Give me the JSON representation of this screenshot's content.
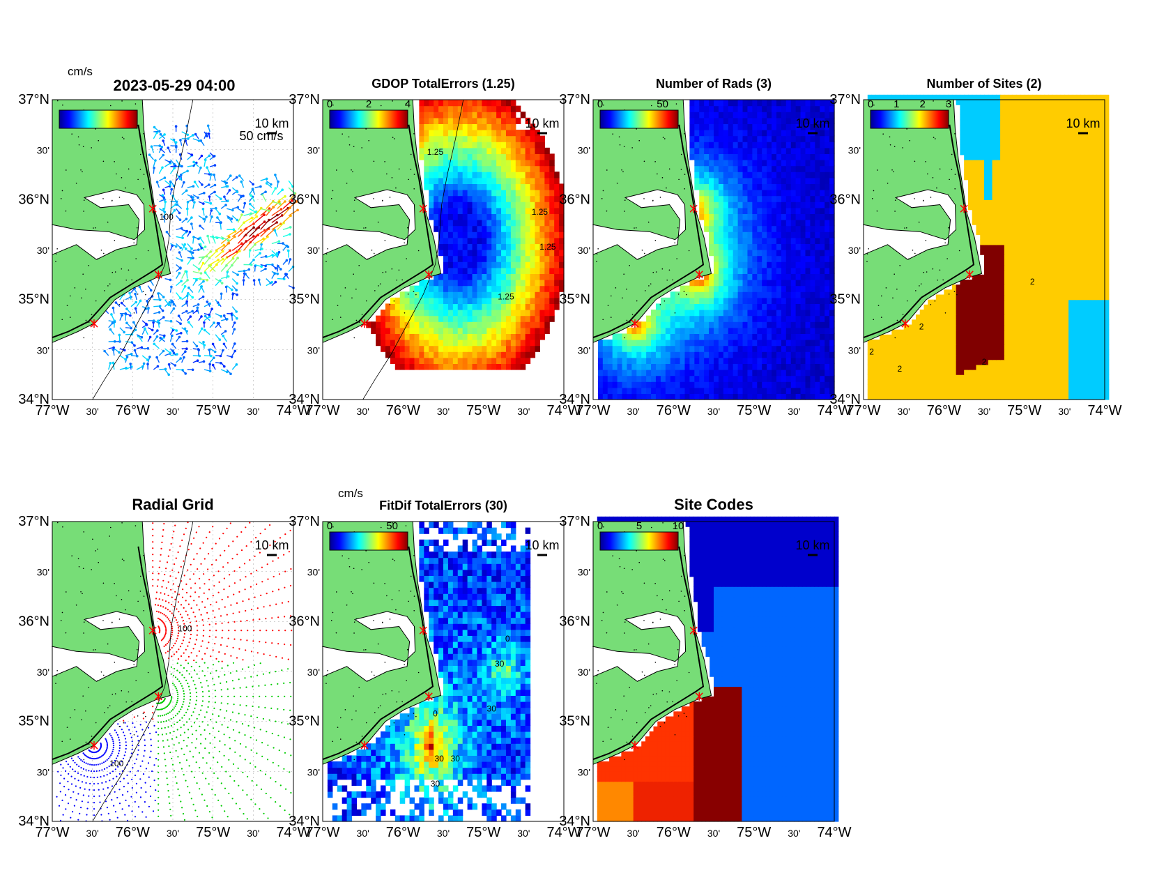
{
  "figure": {
    "timestamp": "2023-05-29 04:00",
    "scale_label": "10 km",
    "lat_labels": [
      "34°N",
      "30'",
      "35°N",
      "30'",
      "36°N",
      "30'",
      "37°N"
    ],
    "lon_labels": [
      "77°W",
      "30'",
      "76°W",
      "30'",
      "75°W",
      "30'",
      "74°W"
    ],
    "axis_ranges": {
      "lon": [
        -77,
        -74
      ],
      "lat": [
        34,
        37
      ]
    },
    "land_color": "#77dd77",
    "site_marker_color": "#ff0000",
    "sites": [
      {
        "lon": -75.75,
        "lat": 35.91
      },
      {
        "lon": -75.68,
        "lat": 35.25
      },
      {
        "lon": -76.48,
        "lat": 34.76
      }
    ]
  },
  "panels": [
    {
      "id": "currents",
      "title": "",
      "colorbar_unit": "cm/s",
      "colorbar_ticks": [],
      "vector_label": "50 cm/s",
      "contour_labels": [
        "100"
      ]
    },
    {
      "id": "gdop",
      "title": "GDOP TotalErrors (1.25)",
      "colorbar_unit": "",
      "colorbar_ticks": [
        "0",
        "2",
        "4"
      ],
      "contour_labels": [
        "1.25",
        "1.25",
        "1.25",
        "1.25"
      ]
    },
    {
      "id": "rads",
      "title": "Number of Rads (3)",
      "colorbar_unit": "",
      "colorbar_ticks": [
        "0",
        "50"
      ],
      "contour_labels": []
    },
    {
      "id": "sites",
      "title": "Number of Sites (2)",
      "colorbar_unit": "",
      "colorbar_ticks": [
        "0",
        "1",
        "2",
        "3"
      ],
      "contour_labels": [
        "2",
        "2",
        "2",
        "2",
        "2"
      ]
    },
    {
      "id": "radial",
      "title": "Radial Grid",
      "colorbar_unit": "",
      "colorbar_ticks": [],
      "contour_labels": [
        "100",
        "100"
      ]
    },
    {
      "id": "fitdif",
      "title": "FitDif TotalErrors (30)",
      "colorbar_unit": "cm/s",
      "colorbar_ticks": [
        "0",
        "50"
      ],
      "contour_labels": [
        "30",
        "30",
        "30",
        "30",
        "30",
        "0",
        "0"
      ]
    },
    {
      "id": "codes",
      "title": "Site Codes",
      "colorbar_unit": "",
      "colorbar_ticks": [
        "0",
        "5",
        "10"
      ],
      "contour_labels": []
    }
  ]
}
